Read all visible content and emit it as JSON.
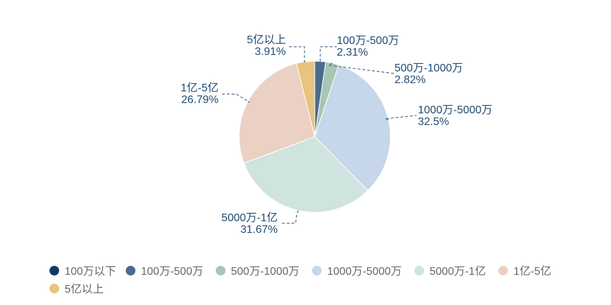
{
  "chart_data": {
    "type": "pie",
    "start_angle_deg": 90,
    "direction": "clockwise",
    "legend_position": "bottom-center",
    "series": [
      {
        "name": "100万以下",
        "value": 0,
        "label": "",
        "color": "#0f3a64"
      },
      {
        "name": "100万-500万",
        "value": 2.31,
        "label": "2.31%",
        "color": "#4a6b8e"
      },
      {
        "name": "500万-1000万",
        "value": 2.82,
        "label": "2.82%",
        "color": "#a7c6b6"
      },
      {
        "name": "1000万-5000万",
        "value": 32.5,
        "label": "32.5%",
        "color": "#c6d6eb"
      },
      {
        "name": "5000万-1亿",
        "value": 31.67,
        "label": "31.67%",
        "color": "#cfe4de"
      },
      {
        "name": "1亿-5亿",
        "value": 26.79,
        "label": "26.79%",
        "color": "#ead1c4"
      },
      {
        "name": "5亿以上",
        "value": 3.91,
        "label": "3.91%",
        "color": "#e8c481"
      }
    ]
  }
}
